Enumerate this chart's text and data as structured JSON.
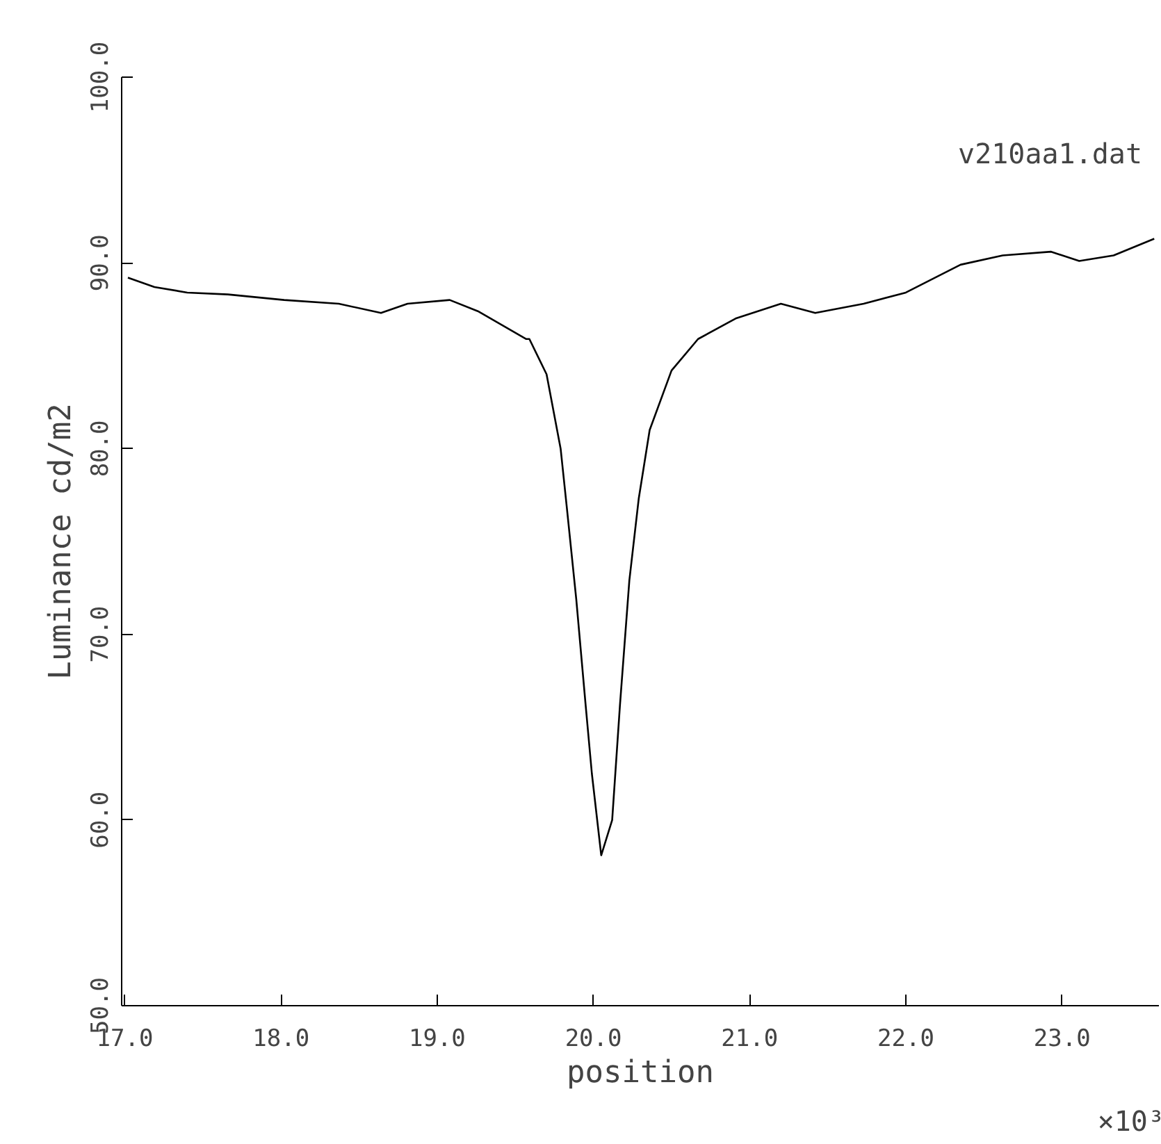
{
  "chart_data": {
    "type": "line",
    "xlabel": "position",
    "ylabel": "Luminance cd/m2",
    "annotations": [
      "v210aa1.dat",
      "×10³"
    ],
    "x": [
      17.02,
      17.19,
      17.4,
      17.66,
      18.02,
      18.37,
      18.64,
      18.81,
      19.08,
      19.26,
      19.57,
      19.59,
      19.7,
      19.79,
      19.83,
      19.89,
      19.95,
      19.99,
      20.05,
      20.12,
      20.17,
      20.23,
      20.29,
      20.36,
      20.5,
      20.67,
      20.91,
      21.2,
      21.42,
      21.73,
      22.0,
      22.35,
      22.62,
      22.93,
      23.11,
      23.33,
      23.59
    ],
    "series": [
      {
        "color": "#000000",
        "values": [
          89.2,
          88.7,
          88.4,
          88.3,
          88.0,
          87.8,
          87.3,
          87.8,
          88.0,
          87.4,
          85.9,
          85.9,
          84.0,
          80.0,
          76.8,
          71.9,
          66.2,
          62.5,
          58.1,
          60.0,
          66.2,
          72.9,
          77.3,
          81.0,
          84.2,
          85.9,
          87.0,
          87.8,
          87.3,
          87.8,
          88.4,
          89.9,
          90.4,
          90.6,
          90.1,
          90.4,
          91.3
        ]
      }
    ],
    "xlim": [
      16.98,
      23.62
    ],
    "ylim": [
      50,
      100
    ],
    "xticks": [
      {
        "value": 17,
        "label": "17.0"
      },
      {
        "value": 18,
        "label": "18.0"
      },
      {
        "value": 19,
        "label": "19.0"
      },
      {
        "value": 20,
        "label": "20.0"
      },
      {
        "value": 21,
        "label": "21.0"
      },
      {
        "value": 22,
        "label": "22.0"
      },
      {
        "value": 23,
        "label": "23.0"
      }
    ],
    "yticks": [
      {
        "value": 50,
        "label": "50.0"
      },
      {
        "value": 60,
        "label": "60.0"
      },
      {
        "value": 70,
        "label": "70.0"
      },
      {
        "value": 80,
        "label": "80.0"
      },
      {
        "value": 90,
        "label": "90.0"
      },
      {
        "value": 100,
        "label": "100.0"
      }
    ],
    "grid": false,
    "marker": "none",
    "line_style": "solid"
  }
}
